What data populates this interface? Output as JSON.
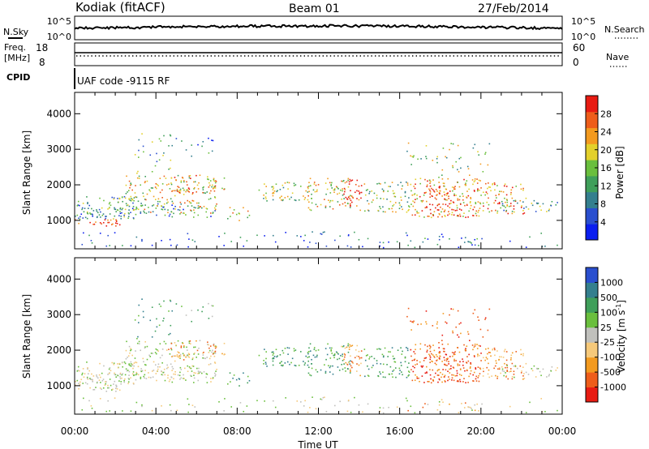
{
  "header": {
    "station": "Kodiak (fitACF)",
    "beam": "Beam 01",
    "date": "27/Feb/2014"
  },
  "noise_panel": {
    "left_label": "N.Sky",
    "right_label": "N.Search",
    "left_ticks": [
      "10^5",
      "10^0"
    ],
    "right_ticks": [
      "10^5",
      "10^0"
    ]
  },
  "freq_panel": {
    "left_label_line1": "Freq.",
    "left_label_line2": "[MHz]",
    "left_ticks": [
      "18",
      "8"
    ],
    "right_ticks": [
      "60",
      "0"
    ],
    "right_label": "Nave"
  },
  "cpid_panel": {
    "label": "CPID",
    "text": "UAF code -9115 RF"
  },
  "colors": {
    "power": [
      "#0a1ef0",
      "#2a4fcf",
      "#347f8e",
      "#3f9f5a",
      "#6abf3d",
      "#e3d02b",
      "#f39a1f",
      "#ee5d1a",
      "#e81b12"
    ],
    "velocity": [
      "#e81b12",
      "#ee5d1a",
      "#f39a1f",
      "#f6c97a",
      "#c0c0bc",
      "#6abf3d",
      "#3f9f5a",
      "#347f8e",
      "#2a4fcf"
    ]
  },
  "chart_data": [
    {
      "type": "heatmap",
      "name": "power",
      "ylabel": "Slant Range [km]",
      "x": [
        "00:00",
        "04:00",
        "08:00",
        "12:00",
        "16:00",
        "20:00",
        "00:00"
      ],
      "y_ticks": [
        1000,
        2000,
        3000,
        4000
      ],
      "ylim": [
        200,
        4600
      ],
      "colorbar_label": "Power [dB]",
      "colorbar_ticks": [
        4,
        8,
        12,
        16,
        20,
        24,
        28
      ],
      "colorbar_range": [
        0,
        32
      ]
    },
    {
      "type": "heatmap",
      "name": "velocity",
      "ylabel": "Slant Range [km]",
      "xlabel": "Time UT",
      "x": [
        "00:00",
        "04:00",
        "08:00",
        "12:00",
        "16:00",
        "20:00",
        "00:00"
      ],
      "y_ticks": [
        1000,
        2000,
        3000,
        4000
      ],
      "ylim": [
        200,
        4600
      ],
      "colorbar_label": "Velocity [m s",
      "colorbar_label_sup": "-1",
      "colorbar_label_end": "]",
      "colorbar_ticks": [
        "-1000",
        "-500",
        "-100",
        "-25",
        "25",
        "100",
        "500",
        "1000"
      ]
    }
  ]
}
